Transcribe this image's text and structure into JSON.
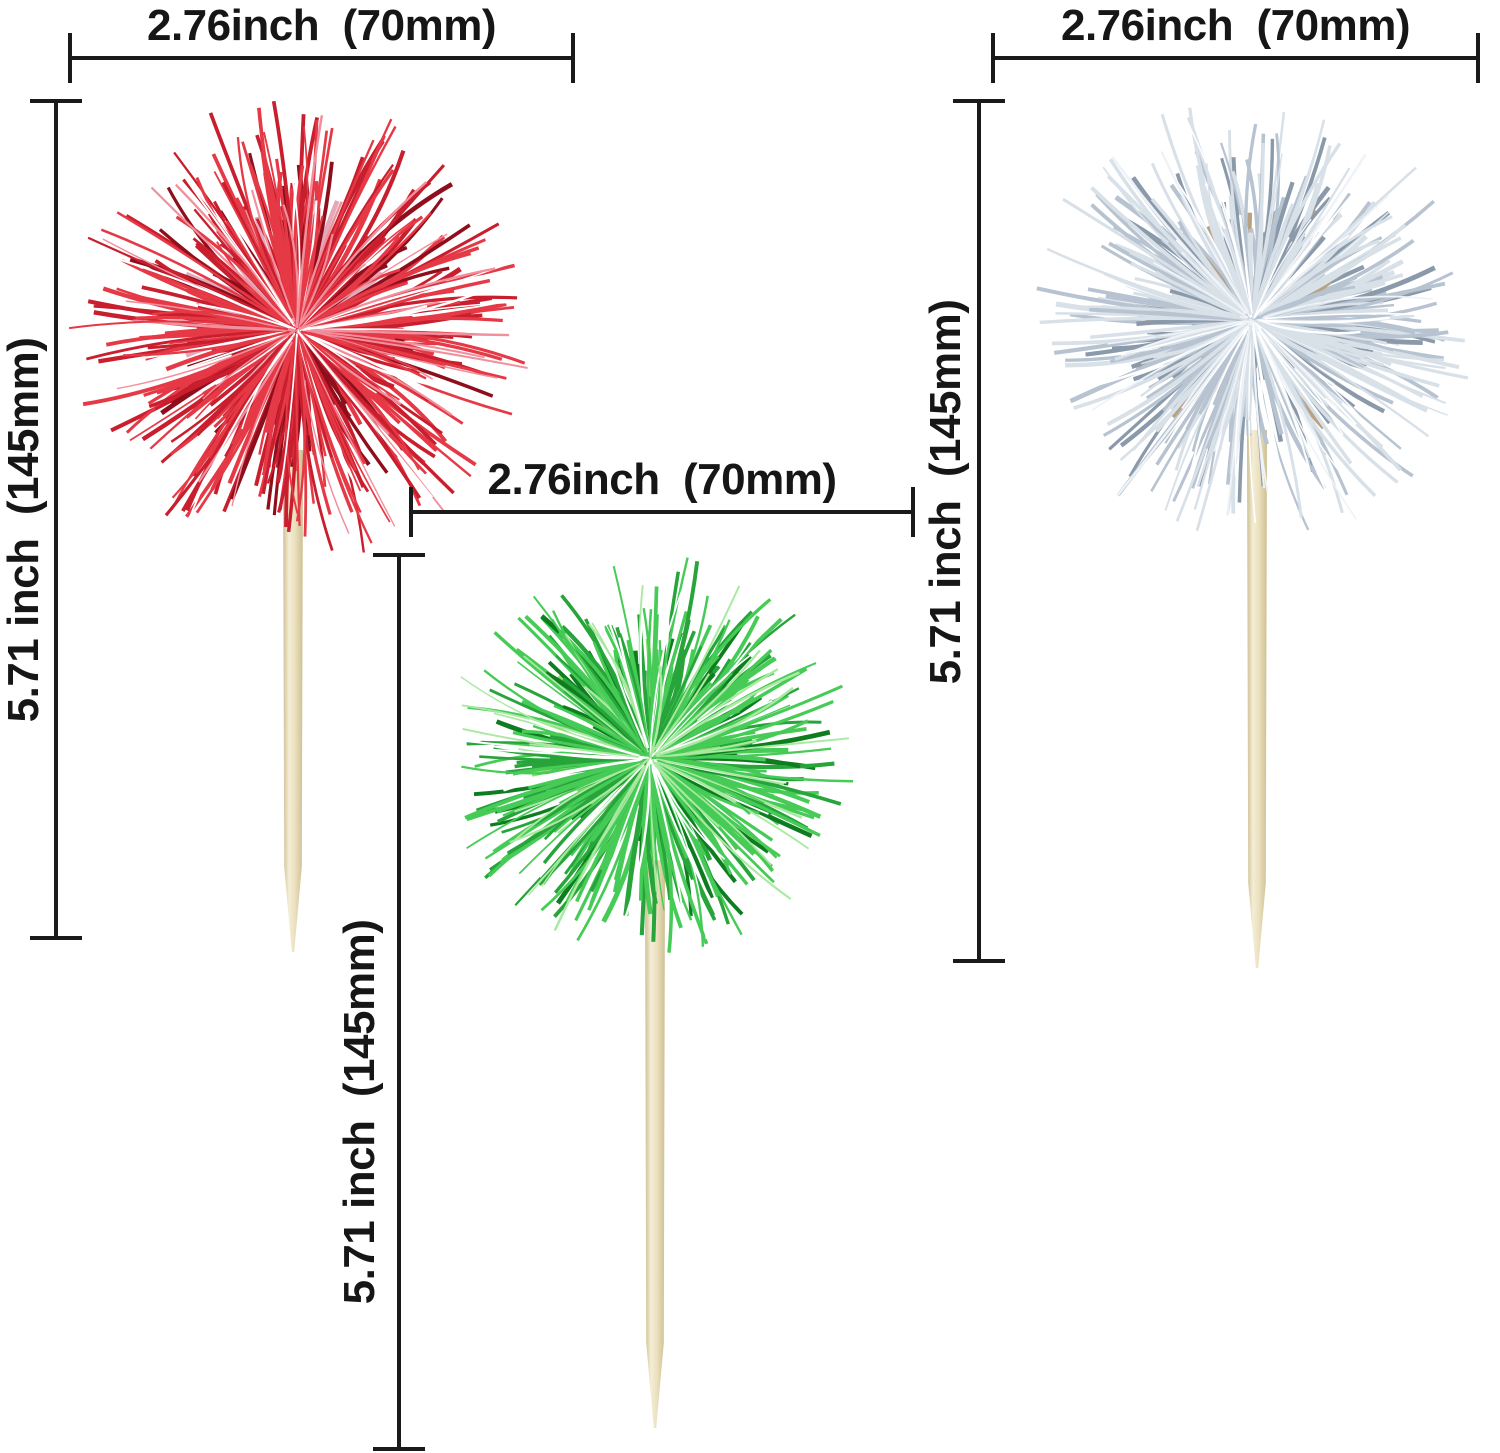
{
  "diagram": {
    "background_color": "#ffffff",
    "line_color": "#1a1a1a",
    "text_color": "#161616"
  },
  "labels": {
    "red_width": "2.76inch  (70mm)",
    "red_height": "5.71 inch  (145mm)",
    "green_width": "2.76inch  (70mm)",
    "green_height": "5.71 inch  (145mm)",
    "silver_width": "2.76inch  (70mm)",
    "silver_height": "5.71 inch  (145mm)"
  },
  "stick_colors": {
    "light": "#f5eed6",
    "mid": "#eadfbc",
    "dark": "#cdbf92"
  },
  "picks": {
    "red": {
      "color_name": "red",
      "palette": {
        "dark": "#8e0e1c",
        "mid": "#c91e2e",
        "bright": "#e63946",
        "light": "#f28f9c",
        "glint": "#ffffff",
        "accent": "#e3a9b8"
      }
    },
    "green": {
      "color_name": "green",
      "palette": {
        "dark": "#0e7d1f",
        "mid": "#27a43a",
        "bright": "#47cb57",
        "light": "#a9e9a1",
        "glint": "#ffffff",
        "accent": "#8fdc6a"
      }
    },
    "silver": {
      "color_name": "silver",
      "palette": {
        "dark": "#8b9aab",
        "mid": "#b7c3d0",
        "bright": "#d8e0e8",
        "light": "#eff3f7",
        "glint": "#ffffff",
        "accent": "#b9a183"
      }
    }
  }
}
